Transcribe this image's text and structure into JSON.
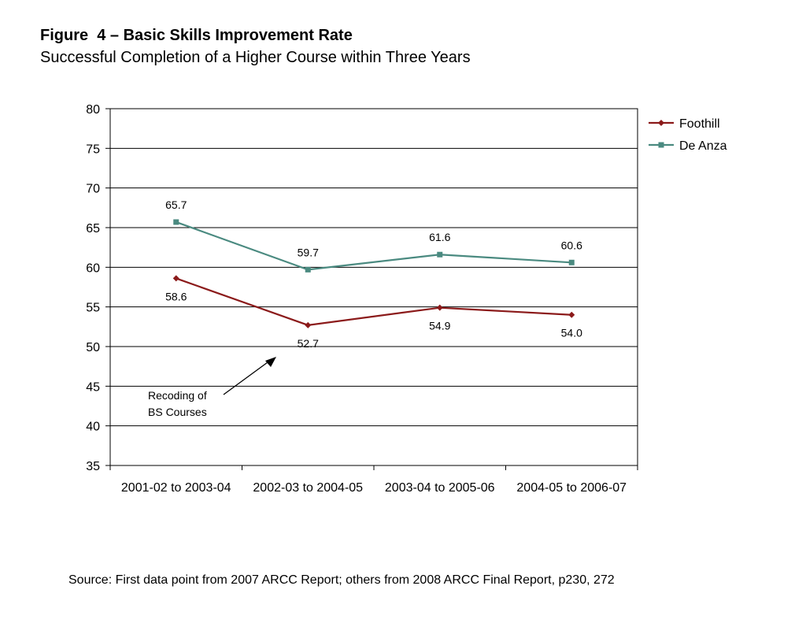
{
  "title": "Figure  4 – Basic Skills Improvement Rate",
  "subtitle": "Successful Completion of a Higher Course within Three Years",
  "source": "Source: First data point from 2007 ARCC Report; others from 2008 ARCC Final Report, p230, 272",
  "chart_data": {
    "type": "line",
    "categories": [
      "2001-02 to 2003-04",
      "2002-03 to 2004-05",
      "2003-04 to 2005-06",
      "2004-05 to 2006-07"
    ],
    "ylim": [
      35,
      80
    ],
    "yticks": [
      35,
      40,
      45,
      50,
      55,
      60,
      65,
      70,
      75,
      80
    ],
    "grid": true,
    "legend_position": "top-right",
    "series": [
      {
        "name": "Foothill",
        "values": [
          58.6,
          52.7,
          54.9,
          54.0
        ],
        "labels": [
          "58.6",
          "52.7",
          "54.9",
          "54.0"
        ],
        "color": "#8b1a1a",
        "marker": "diamond"
      },
      {
        "name": "De Anza",
        "values": [
          65.7,
          59.7,
          61.6,
          60.6
        ],
        "labels": [
          "65.7",
          "59.7",
          "61.6",
          "60.6"
        ],
        "color": "#4a8a80",
        "marker": "square"
      }
    ],
    "annotation": {
      "lines": [
        "Recoding of",
        "BS Courses"
      ]
    }
  }
}
